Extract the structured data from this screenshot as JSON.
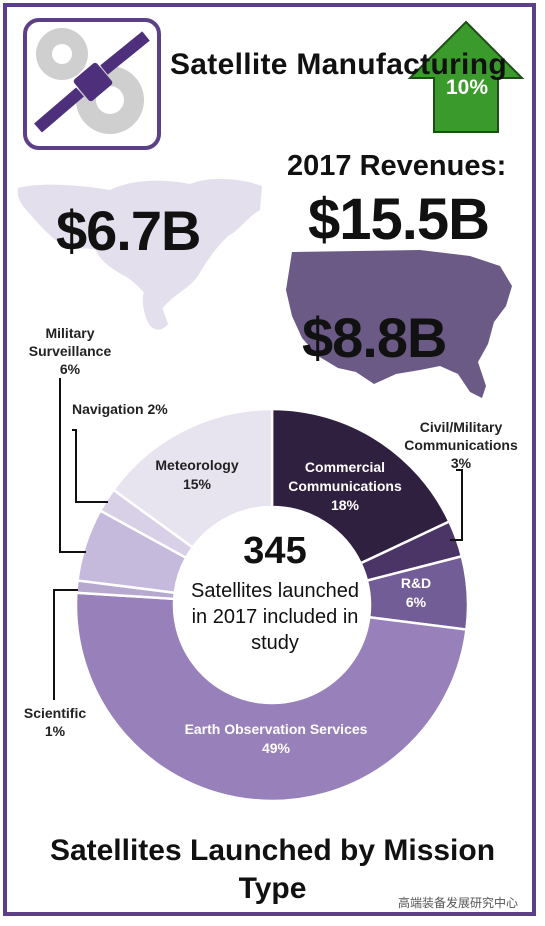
{
  "title": "Satellite Manufacturing",
  "growth": {
    "label": "10%",
    "color": "#3a9a2c"
  },
  "revenues": {
    "label": "2017 Revenues:",
    "total": "$15.5B",
    "world": "$6.7B",
    "us": "$8.8B"
  },
  "center": {
    "number": "345",
    "text": "Satellites launched in 2017 included in study"
  },
  "bottom_title": "Satellites Launched by Mission Type",
  "watermark": "高端装备发展研究中心",
  "chart_data": {
    "type": "pie",
    "title": "Satellites Launched by Mission Type",
    "series": [
      {
        "name": "Commercial Communications",
        "value": 18,
        "label": "18%",
        "color": "#30203f"
      },
      {
        "name": "Civil/Military Communications",
        "value": 3,
        "label": "3%",
        "color": "#4a3566"
      },
      {
        "name": "R&D",
        "value": 6,
        "label": "6%",
        "color": "#735d96"
      },
      {
        "name": "Earth Observation Services",
        "value": 49,
        "label": "49%",
        "color": "#9880ba"
      },
      {
        "name": "Scientific",
        "value": 1,
        "label": "1%",
        "color": "#b7a8cf"
      },
      {
        "name": "Military Surveillance",
        "value": 6,
        "label": "6%",
        "color": "#c5badb"
      },
      {
        "name": "Navigation",
        "value": 2,
        "label": "2%",
        "color": "#d8d0e6"
      },
      {
        "name": "Meteorology",
        "value": 15,
        "label": "15%",
        "color": "#e7e3ef"
      }
    ]
  }
}
